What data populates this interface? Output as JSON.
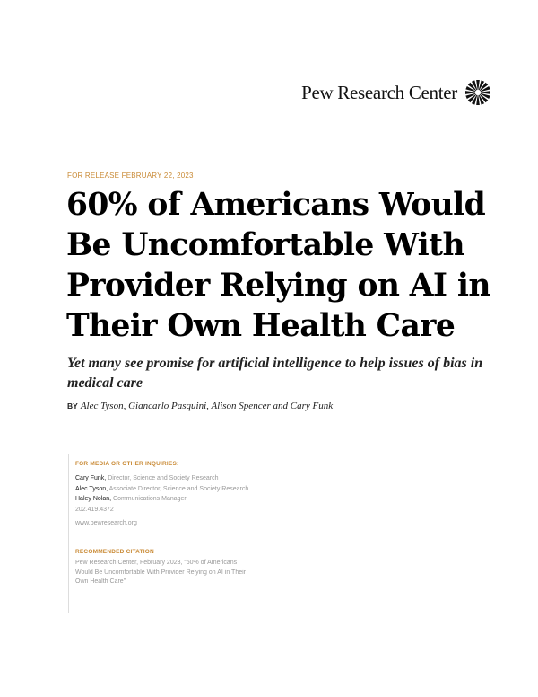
{
  "logo": {
    "text": "Pew Research Center",
    "icon": "sunburst-icon"
  },
  "release_date": "FOR RELEASE FEBRUARY 22, 2023",
  "title": "60% of Americans Would Be Uncomfortable With Provider Relying on AI in Their Own Health Care",
  "subtitle": "Yet many see promise for artificial intelligence to help issues of bias in medical care",
  "byline": {
    "prefix": "BY",
    "authors": "Alec Tyson, Giancarlo Pasquini, Alison Spencer and Cary Funk"
  },
  "media": {
    "heading": "FOR MEDIA OR OTHER INQUIRIES:",
    "contacts": [
      {
        "name": "Cary Funk,",
        "role": "Director, Science and Society Research"
      },
      {
        "name": "Alec Tyson,",
        "role": "Associate Director, Science and Society Research"
      },
      {
        "name": "Haley Nolan,",
        "role": "Communications Manager"
      }
    ],
    "phone": "202.419.4372",
    "website": "www.pewresearch.org"
  },
  "citation": {
    "heading": "RECOMMENDED CITATION",
    "text": "Pew Research Center, February 2023, “60% of Americans Would Be Uncomfortable With Provider Relying on AI in Their Own Health Care”"
  },
  "colors": {
    "accent": "#c98a35",
    "text": "#111111",
    "muted": "#999999"
  }
}
